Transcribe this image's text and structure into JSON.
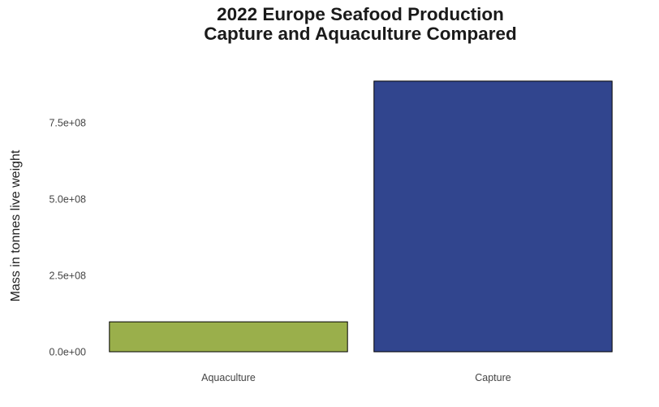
{
  "chart_data": {
    "type": "bar",
    "title": "2022 Europe Seafood Production\nCapture and Aquaculture Compared",
    "ylabel": "Mass in tonnes live weight",
    "categories": [
      "Aquaculture",
      "Capture"
    ],
    "values": [
      98000000,
      886000000
    ],
    "colors": [
      "#9aaf4b",
      "#31458e"
    ],
    "ylim": [
      0,
      930000000
    ],
    "yticks": [
      0,
      250000000,
      500000000,
      750000000
    ],
    "ytick_labels": [
      "0.0e+00",
      "2.5e+08",
      "5.0e+08",
      "7.5e+08"
    ],
    "grid": false
  }
}
